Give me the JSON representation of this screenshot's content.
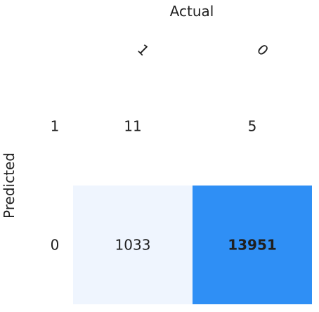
{
  "chart_data": {
    "type": "heatmap",
    "title": "Actual",
    "xlabel": "Actual",
    "ylabel": "Predicted",
    "x_categories": [
      "1",
      "0"
    ],
    "y_categories": [
      "1",
      "0"
    ],
    "values": [
      [
        11,
        5
      ],
      [
        1033,
        13951
      ]
    ],
    "cell_labels": [
      [
        "11",
        "5"
      ],
      [
        "1033",
        "13951"
      ]
    ],
    "color_scale": {
      "low": "#ffffff",
      "mid": "#eaf2fd",
      "high": "#2f8ff5"
    }
  }
}
